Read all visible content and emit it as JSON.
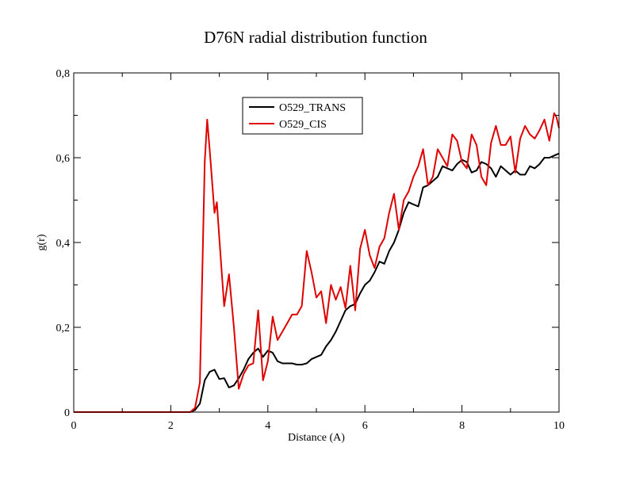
{
  "chart_data": {
    "type": "line",
    "title": "D76N radial distribution function",
    "xlabel": "Distance (A)",
    "ylabel": "g(r)",
    "xlim": [
      0,
      10
    ],
    "ylim": [
      0,
      0.8
    ],
    "xticks": [
      0,
      2,
      4,
      6,
      8,
      10
    ],
    "xtick_labels": [
      "0",
      "2",
      "4",
      "6",
      "8",
      "10"
    ],
    "yticks": [
      0,
      0.2,
      0.4,
      0.6,
      0.8
    ],
    "ytick_labels": [
      "0",
      "0,2",
      "0,4",
      "0,6",
      "0,8"
    ],
    "grid": false,
    "legend_position": "top-center",
    "series": [
      {
        "name": "O529_TRANS",
        "color": "#000000",
        "x": [
          0,
          2.4,
          2.5,
          2.6,
          2.7,
          2.8,
          2.9,
          3.0,
          3.1,
          3.2,
          3.3,
          3.4,
          3.5,
          3.6,
          3.7,
          3.8,
          3.9,
          4.0,
          4.1,
          4.2,
          4.3,
          4.4,
          4.5,
          4.6,
          4.7,
          4.8,
          4.9,
          5.0,
          5.1,
          5.2,
          5.3,
          5.4,
          5.5,
          5.6,
          5.7,
          5.8,
          5.9,
          6.0,
          6.1,
          6.2,
          6.3,
          6.4,
          6.5,
          6.6,
          6.7,
          6.8,
          6.9,
          7.0,
          7.1,
          7.2,
          7.3,
          7.4,
          7.5,
          7.6,
          7.7,
          7.8,
          7.9,
          8.0,
          8.1,
          8.2,
          8.3,
          8.4,
          8.5,
          8.6,
          8.7,
          8.8,
          8.9,
          9.0,
          9.1,
          9.2,
          9.3,
          9.4,
          9.5,
          9.6,
          9.7,
          9.8,
          9.9,
          10.0
        ],
        "y": [
          0,
          0,
          0.005,
          0.02,
          0.075,
          0.095,
          0.1,
          0.078,
          0.08,
          0.058,
          0.063,
          0.08,
          0.1,
          0.125,
          0.14,
          0.15,
          0.13,
          0.145,
          0.14,
          0.12,
          0.115,
          0.115,
          0.115,
          0.112,
          0.112,
          0.115,
          0.125,
          0.13,
          0.135,
          0.155,
          0.17,
          0.19,
          0.215,
          0.24,
          0.25,
          0.255,
          0.28,
          0.3,
          0.31,
          0.33,
          0.355,
          0.35,
          0.38,
          0.4,
          0.43,
          0.47,
          0.495,
          0.49,
          0.485,
          0.53,
          0.535,
          0.545,
          0.555,
          0.58,
          0.575,
          0.57,
          0.585,
          0.595,
          0.59,
          0.565,
          0.57,
          0.59,
          0.585,
          0.575,
          0.555,
          0.58,
          0.57,
          0.56,
          0.57,
          0.56,
          0.56,
          0.58,
          0.575,
          0.585,
          0.6,
          0.6,
          0.605,
          0.61
        ]
      },
      {
        "name": "O529_CIS",
        "color": "#e00000",
        "x": [
          0,
          2.4,
          2.5,
          2.6,
          2.7,
          2.75,
          2.8,
          2.9,
          2.95,
          3.0,
          3.1,
          3.2,
          3.3,
          3.4,
          3.5,
          3.6,
          3.7,
          3.8,
          3.9,
          4.0,
          4.1,
          4.2,
          4.3,
          4.4,
          4.5,
          4.6,
          4.7,
          4.8,
          4.9,
          5.0,
          5.1,
          5.2,
          5.3,
          5.4,
          5.5,
          5.6,
          5.7,
          5.8,
          5.9,
          6.0,
          6.1,
          6.2,
          6.3,
          6.4,
          6.5,
          6.6,
          6.7,
          6.8,
          6.9,
          7.0,
          7.1,
          7.2,
          7.3,
          7.4,
          7.5,
          7.6,
          7.7,
          7.8,
          7.9,
          8.0,
          8.1,
          8.2,
          8.3,
          8.4,
          8.5,
          8.6,
          8.7,
          8.8,
          8.9,
          9.0,
          9.1,
          9.2,
          9.3,
          9.4,
          9.5,
          9.6,
          9.7,
          9.8,
          9.9,
          9.95,
          10.0
        ],
        "y": [
          0,
          0,
          0.01,
          0.07,
          0.59,
          0.69,
          0.62,
          0.47,
          0.495,
          0.41,
          0.25,
          0.325,
          0.2,
          0.055,
          0.09,
          0.11,
          0.115,
          0.24,
          0.075,
          0.12,
          0.225,
          0.17,
          0.19,
          0.21,
          0.23,
          0.23,
          0.25,
          0.38,
          0.33,
          0.27,
          0.285,
          0.21,
          0.3,
          0.265,
          0.295,
          0.245,
          0.345,
          0.24,
          0.385,
          0.43,
          0.37,
          0.34,
          0.39,
          0.41,
          0.47,
          0.515,
          0.43,
          0.5,
          0.52,
          0.555,
          0.58,
          0.62,
          0.535,
          0.555,
          0.62,
          0.6,
          0.58,
          0.655,
          0.64,
          0.59,
          0.575,
          0.655,
          0.63,
          0.555,
          0.535,
          0.635,
          0.675,
          0.63,
          0.63,
          0.65,
          0.565,
          0.645,
          0.675,
          0.655,
          0.645,
          0.665,
          0.69,
          0.64,
          0.705,
          0.695,
          0.67
        ]
      }
    ]
  }
}
